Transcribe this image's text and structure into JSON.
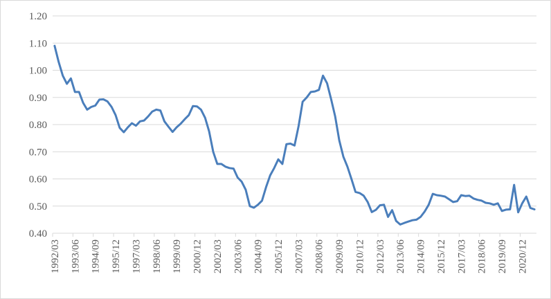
{
  "chart_data": {
    "type": "line",
    "title": "",
    "xlabel": "",
    "ylabel": "",
    "ylim": [
      0.4,
      1.2
    ],
    "y_ticks": [
      "0.40",
      "0.50",
      "0.60",
      "0.70",
      "0.80",
      "0.90",
      "1.00",
      "1.10",
      "1.20"
    ],
    "x_tick_labels": [
      "1992/03",
      "1993/06",
      "1994/09",
      "1995/12",
      "1997/03",
      "1998/06",
      "1999/09",
      "2000/12",
      "2002/03",
      "2003/06",
      "2004/09",
      "2005/12",
      "2007/03",
      "2008/06",
      "2009/09",
      "2010/12",
      "2012/03",
      "2013/06",
      "2014/09",
      "2015/12",
      "2017/03",
      "2018/06",
      "2019/09",
      "2020/12"
    ],
    "x_tick_every": 5,
    "grid": "horizontal",
    "legend": "none",
    "series_color": "#4a7ebb",
    "series": [
      {
        "values": [
          1.09,
          1.03,
          0.98,
          0.95,
          0.97,
          0.92,
          0.92,
          0.88,
          0.855,
          0.865,
          0.87,
          0.892,
          0.893,
          0.885,
          0.865,
          0.835,
          0.788,
          0.772,
          0.79,
          0.805,
          0.796,
          0.812,
          0.815,
          0.83,
          0.848,
          0.855,
          0.852,
          0.812,
          0.792,
          0.773,
          0.79,
          0.803,
          0.82,
          0.835,
          0.868,
          0.867,
          0.855,
          0.825,
          0.775,
          0.7,
          0.655,
          0.655,
          0.645,
          0.64,
          0.638,
          0.605,
          0.59,
          0.56,
          0.5,
          0.494,
          0.505,
          0.52,
          0.57,
          0.613,
          0.64,
          0.672,
          0.655,
          0.728,
          0.73,
          0.723,
          0.795,
          0.884,
          0.9,
          0.92,
          0.922,
          0.928,
          0.98,
          0.952,
          0.893,
          0.83,
          0.742,
          0.682,
          0.645,
          0.6,
          0.552,
          0.548,
          0.538,
          0.515,
          0.478,
          0.486,
          0.503,
          0.505,
          0.46,
          0.485,
          0.445,
          0.432,
          0.438,
          0.443,
          0.448,
          0.45,
          0.46,
          0.48,
          0.505,
          0.545,
          0.54,
          0.538,
          0.535,
          0.525,
          0.515,
          0.518,
          0.54,
          0.537,
          0.538,
          0.528,
          0.523,
          0.52,
          0.512,
          0.51,
          0.505,
          0.51,
          0.482,
          0.487,
          0.488,
          0.578,
          0.477,
          0.51,
          0.535,
          0.493,
          0.488
        ]
      }
    ]
  }
}
